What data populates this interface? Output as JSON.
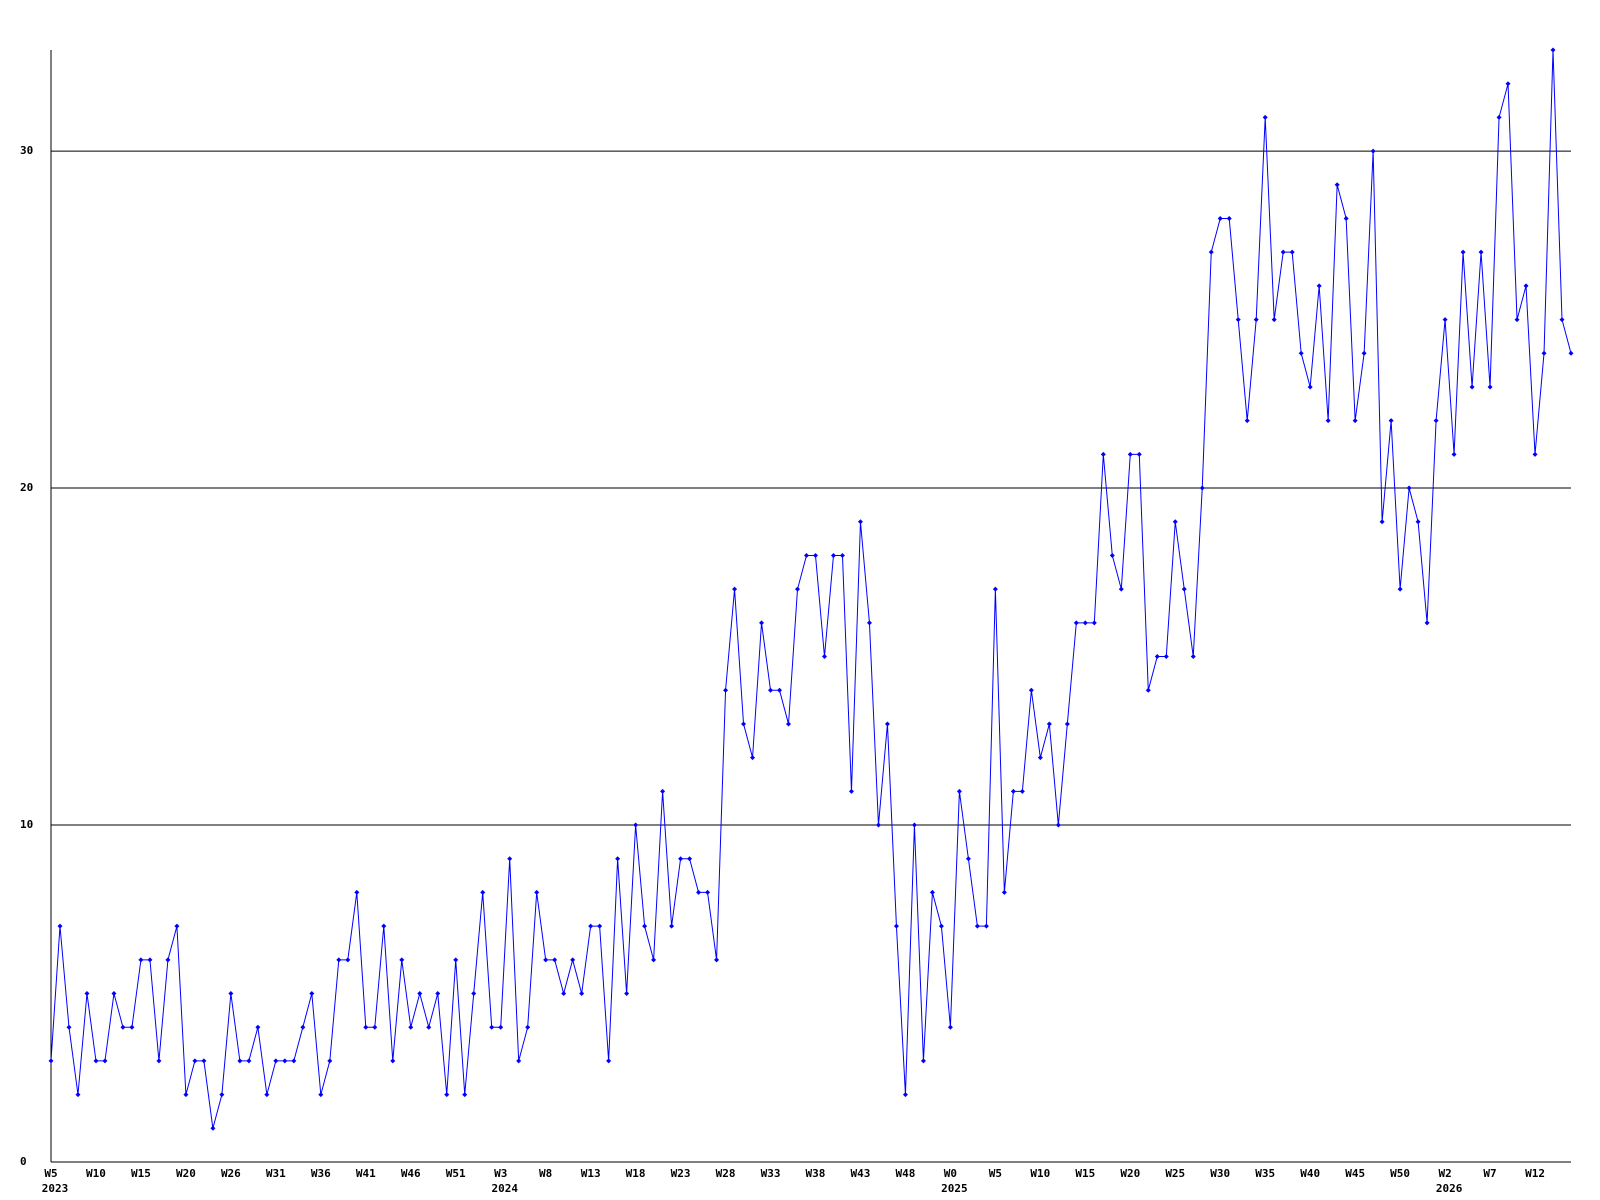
{
  "chart_data": {
    "type": "line",
    "categories": [
      "W5",
      null,
      null,
      null,
      null,
      "W10",
      null,
      null,
      null,
      null,
      "W15",
      null,
      null,
      null,
      null,
      "W20",
      null,
      null,
      null,
      null,
      "W26",
      null,
      null,
      null,
      null,
      "W31",
      null,
      null,
      null,
      null,
      "W36",
      null,
      null,
      null,
      null,
      "W41",
      null,
      null,
      null,
      null,
      "W46",
      null,
      null,
      null,
      null,
      "W51",
      null,
      null,
      null,
      null,
      "W3",
      null,
      null,
      null,
      null,
      "W8",
      null,
      null,
      null,
      null,
      "W13",
      null,
      null,
      null,
      null,
      "W18",
      null,
      null,
      null,
      null,
      "W23",
      null,
      null,
      null,
      null,
      "W28",
      null,
      null,
      null,
      null,
      "W33",
      null,
      null,
      null,
      null,
      "W38",
      null,
      null,
      null,
      null,
      "W43",
      null,
      null,
      null,
      null,
      "W48",
      null,
      null,
      null,
      null,
      "W0",
      null,
      null,
      null,
      null,
      "W5",
      null,
      null,
      null,
      null,
      "W10",
      null,
      null,
      null,
      null,
      "W15",
      null,
      null,
      null,
      null,
      "W20",
      null,
      null,
      null,
      null,
      "W25",
      null,
      null,
      null,
      null,
      "W30",
      null,
      null,
      null,
      null,
      "W35",
      null,
      null,
      null,
      null,
      "W40",
      null,
      null,
      null,
      null,
      "W45",
      null,
      null,
      null,
      null,
      "W50",
      null,
      null,
      null,
      null,
      "W2",
      null,
      null,
      null,
      null,
      "W7",
      null,
      null,
      null,
      null,
      "W12",
      null,
      null,
      null,
      null
    ],
    "categories_year": [
      "2023",
      null,
      null,
      null,
      null,
      null,
      null,
      null,
      null,
      null,
      null,
      null,
      null,
      null,
      null,
      null,
      null,
      null,
      null,
      null,
      null,
      null,
      null,
      null,
      null,
      null,
      null,
      null,
      null,
      null,
      null,
      null,
      null,
      null,
      null,
      null,
      null,
      null,
      null,
      null,
      null,
      null,
      null,
      null,
      null,
      null,
      null,
      null,
      null,
      null,
      "2024",
      null,
      null,
      null,
      null,
      null,
      null,
      null,
      null,
      null,
      null,
      null,
      null,
      null,
      null,
      null,
      null,
      null,
      null,
      null,
      null,
      null,
      null,
      null,
      null,
      null,
      null,
      null,
      null,
      null,
      null,
      null,
      null,
      null,
      null,
      null,
      null,
      null,
      null,
      null,
      null,
      null,
      null,
      null,
      null,
      null,
      null,
      null,
      null,
      null,
      "2025",
      null,
      null,
      null,
      null,
      null,
      null,
      null,
      null,
      null,
      null,
      null,
      null,
      null,
      null,
      null,
      null,
      null,
      null,
      null,
      null,
      null,
      null,
      null,
      null,
      null,
      null,
      null,
      null,
      null,
      null,
      null,
      null,
      null,
      null,
      null,
      null,
      null,
      null,
      null,
      null,
      null,
      null,
      null,
      null,
      null,
      null,
      null,
      null,
      null,
      null,
      null,
      null,
      null,
      null,
      "2026",
      null,
      null,
      null,
      null,
      null,
      null,
      null,
      null,
      null,
      null,
      null,
      null,
      null,
      null,
      null,
      null,
      null,
      null,
      null
    ],
    "values": [
      3,
      7,
      4,
      2,
      5,
      3,
      3,
      5,
      4,
      4,
      6,
      6,
      3,
      6,
      7,
      2,
      3,
      3,
      1,
      2,
      5,
      3,
      3,
      4,
      2,
      3,
      3,
      3,
      4,
      5,
      2,
      3,
      6,
      6,
      8,
      4,
      4,
      7,
      3,
      6,
      4,
      5,
      4,
      5,
      2,
      6,
      2,
      5,
      8,
      4,
      4,
      9,
      3,
      4,
      8,
      6,
      6,
      5,
      6,
      5,
      7,
      7,
      3,
      9,
      5,
      10,
      7,
      6,
      11,
      7,
      9,
      9,
      8,
      8,
      6,
      14,
      17,
      13,
      12,
      16,
      14,
      14,
      13,
      17,
      18,
      18,
      15,
      18,
      18,
      11,
      19,
      16,
      10,
      13,
      7,
      2,
      10,
      3,
      8,
      7,
      4,
      11,
      9,
      7,
      7,
      17,
      8,
      11,
      11,
      14,
      12,
      13,
      10,
      13,
      16,
      16,
      16,
      21,
      18,
      17,
      21,
      21,
      14,
      15,
      15,
      19,
      17,
      15,
      20,
      27,
      28,
      28,
      25,
      22,
      25,
      31,
      25,
      27,
      27,
      24,
      23,
      26,
      22,
      29,
      28,
      22,
      24,
      30,
      19,
      22,
      17,
      20,
      19,
      16,
      22,
      25,
      21,
      27,
      23,
      27,
      23,
      31,
      32,
      25,
      26,
      21,
      24,
      33,
      25,
      24
    ],
    "color": "#0000ff",
    "ylim": [
      0,
      33
    ],
    "yticks": [
      0,
      10,
      20,
      30
    ],
    "grid": true
  }
}
